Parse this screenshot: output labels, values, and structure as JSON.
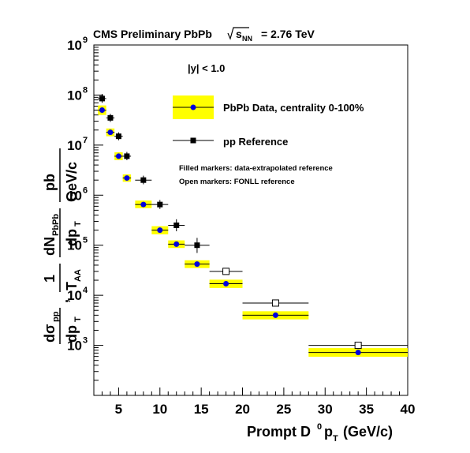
{
  "chart_data": {
    "type": "scatter",
    "title": "CMS Preliminary PbPb",
    "title_sqrt_symbol": "s",
    "title_sqrt_subscript": "NN",
    "title_energy": "= 2.76 TeV",
    "xlabel": {
      "main": "Prompt D",
      "sup": "0",
      "p": "p",
      "sub": "T",
      "unit": "(GeV/c)"
    },
    "ylabel": "dσ_pp/dp_T , 1/T_AA dN_PbPb/dp_T  pb/GeV/c",
    "xlim": [
      2,
      40
    ],
    "ylim": [
      100,
      1000000000
    ],
    "y_scale": "log",
    "grid": false,
    "x_ticks": [
      5,
      10,
      15,
      20,
      25,
      30,
      35,
      40
    ],
    "y_ticks": [
      {
        "base": "10",
        "exp": "3",
        "value": 1000
      },
      {
        "base": "10",
        "exp": "4",
        "value": 10000
      },
      {
        "base": "10",
        "exp": "5",
        "value": 100000
      },
      {
        "base": "10",
        "exp": "6",
        "value": 1000000
      },
      {
        "base": "10",
        "exp": "7",
        "value": 10000000
      },
      {
        "base": "10",
        "exp": "8",
        "value": 100000000
      },
      {
        "base": "10",
        "exp": "9",
        "value": 1000000000
      }
    ],
    "annotation_rapidity": "|y| < 1.0",
    "notes": [
      "Filled markers: data-extrapolated reference",
      "Open markers: FONLL reference"
    ],
    "legend_placement": "top-right",
    "series": [
      {
        "name": "PbPb Data, centrality 0-100%",
        "marker": "circle",
        "color": "#0000dd",
        "band_color": "#ffff00",
        "points": [
          {
            "x": 3,
            "y": 50000000,
            "xlo": 2.5,
            "xhi": 3.5,
            "ylo": 40000000,
            "yhi": 62000000
          },
          {
            "x": 4,
            "y": 18000000,
            "xlo": 3.5,
            "xhi": 4.5,
            "ylo": 15000000,
            "yhi": 21500000
          },
          {
            "x": 5,
            "y": 6000000,
            "xlo": 4.5,
            "xhi": 5.5,
            "ylo": 5000000,
            "yhi": 7200000
          },
          {
            "x": 6,
            "y": 2200000,
            "xlo": 5.5,
            "xhi": 6.5,
            "ylo": 1850000,
            "yhi": 2600000
          },
          {
            "x": 8,
            "y": 650000,
            "xlo": 7,
            "xhi": 9,
            "ylo": 550000,
            "yhi": 780000
          },
          {
            "x": 10,
            "y": 200000,
            "xlo": 9,
            "xhi": 11,
            "ylo": 165000,
            "yhi": 240000
          },
          {
            "x": 12,
            "y": 105000,
            "xlo": 11,
            "xhi": 13,
            "ylo": 88000,
            "yhi": 125000
          },
          {
            "x": 14.5,
            "y": 42000,
            "xlo": 13,
            "xhi": 16,
            "ylo": 35000,
            "yhi": 50000
          },
          {
            "x": 18,
            "y": 17000,
            "xlo": 16,
            "xhi": 20,
            "ylo": 14000,
            "yhi": 20500
          },
          {
            "x": 24,
            "y": 4000,
            "xlo": 20,
            "xhi": 28,
            "ylo": 3300,
            "yhi": 4800
          },
          {
            "x": 34,
            "y": 720,
            "xlo": 28,
            "xhi": 40,
            "ylo": 590,
            "yhi": 880
          }
        ]
      },
      {
        "name": "pp Reference",
        "marker": "square",
        "color": "#000000",
        "points": [
          {
            "x": 3,
            "y": 85000000,
            "xlo": 2.5,
            "xhi": 3.5,
            "ylo": 70000000,
            "yhi": 105000000,
            "open": false
          },
          {
            "x": 4,
            "y": 35000000,
            "xlo": 3.5,
            "xhi": 4.5,
            "ylo": 29000000,
            "yhi": 42000000,
            "open": false
          },
          {
            "x": 5,
            "y": 15000000,
            "xlo": 4.5,
            "xhi": 5.5,
            "ylo": 12500000,
            "yhi": 18000000,
            "open": false
          },
          {
            "x": 6,
            "y": 6000000,
            "xlo": 5.5,
            "xhi": 6.5,
            "ylo": 5000000,
            "yhi": 7300000,
            "open": false
          },
          {
            "x": 8,
            "y": 2000000,
            "xlo": 7,
            "xhi": 9,
            "ylo": 1650000,
            "yhi": 2450000,
            "open": false
          },
          {
            "x": 10,
            "y": 650000,
            "xlo": 9,
            "xhi": 11,
            "ylo": 530000,
            "yhi": 800000,
            "open": false
          },
          {
            "x": 12,
            "y": 250000,
            "xlo": 11,
            "xhi": 13,
            "ylo": 190000,
            "yhi": 330000,
            "open": false
          },
          {
            "x": 14.5,
            "y": 100000,
            "xlo": 13,
            "xhi": 16,
            "ylo": 70000,
            "yhi": 140000,
            "open": false
          },
          {
            "x": 18,
            "y": 30000,
            "xlo": 16,
            "xhi": 20,
            "ylo": 30000,
            "yhi": 30000,
            "open": true
          },
          {
            "x": 24,
            "y": 7000,
            "xlo": 20,
            "xhi": 28,
            "ylo": 7000,
            "yhi": 7000,
            "open": true
          },
          {
            "x": 34,
            "y": 1000,
            "xlo": 28,
            "xhi": 40,
            "ylo": 1000,
            "yhi": 1000,
            "open": true
          }
        ]
      }
    ]
  }
}
